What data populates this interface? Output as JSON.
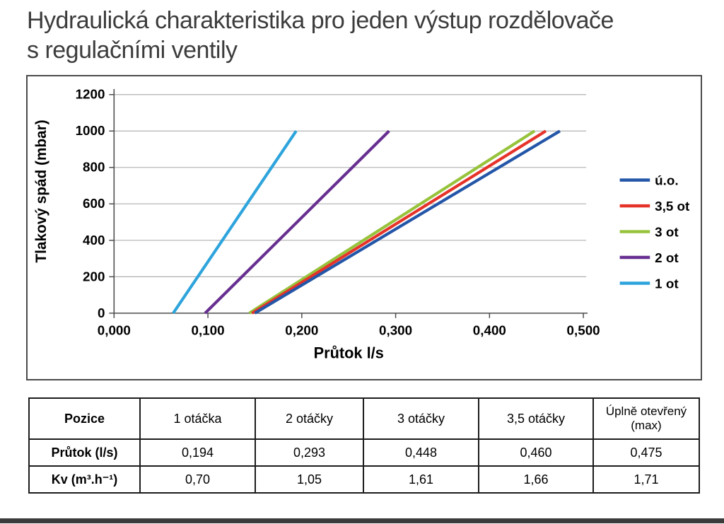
{
  "page": {
    "title_line1": "Hydraulická charakteristika pro jeden výstup rozdělovače",
    "title_line2": "s regulačními ventily"
  },
  "chart_data": {
    "type": "line",
    "title": "",
    "xlabel": "Průtok l/s",
    "ylabel": "Tlakový spád (mbar)",
    "xlim": [
      0,
      0.5
    ],
    "ylim": [
      0,
      1200
    ],
    "x_tick_labels": [
      "0,000",
      "0,100",
      "0,200",
      "0,300",
      "0,400",
      "0,500"
    ],
    "x_tick_values": [
      0,
      0.1,
      0.2,
      0.3,
      0.4,
      0.5
    ],
    "y_tick_values": [
      0,
      200,
      400,
      600,
      800,
      1000,
      1200
    ],
    "grid": "horizontal",
    "legend_position": "right",
    "colors": {
      "gridline": "#b0b0b0",
      "axis": "#4d4d4d",
      "text": "#000000"
    },
    "series": [
      {
        "name": "ú.o.",
        "color": "#2456a8",
        "points": [
          [
            0.15,
            0
          ],
          [
            0.475,
            1000
          ]
        ]
      },
      {
        "name": "3,5 ot",
        "color": "#e6332a",
        "points": [
          [
            0.147,
            0
          ],
          [
            0.46,
            1000
          ]
        ]
      },
      {
        "name": "3 ot",
        "color": "#97c33c",
        "points": [
          [
            0.144,
            0
          ],
          [
            0.448,
            1000
          ]
        ]
      },
      {
        "name": "2 ot",
        "color": "#672f90",
        "points": [
          [
            0.097,
            0
          ],
          [
            0.293,
            1000
          ]
        ]
      },
      {
        "name": "1 ot",
        "color": "#2ea4dc",
        "points": [
          [
            0.063,
            0
          ],
          [
            0.194,
            1000
          ]
        ]
      }
    ]
  },
  "table": {
    "headers": [
      "Pozice",
      "1 otáčka",
      "2 otáčky",
      "3 otáčky",
      "3,5 otáčky",
      "Úplně otevřený (max)"
    ],
    "rows": [
      {
        "label": "Průtok (l/s)",
        "values": [
          "0,194",
          "0,293",
          "0,448",
          "0,460",
          "0,475"
        ]
      },
      {
        "label": "Kv (m³.h⁻¹)",
        "values": [
          "0,70",
          "1,05",
          "1,61",
          "1,66",
          "1,71"
        ]
      }
    ]
  }
}
